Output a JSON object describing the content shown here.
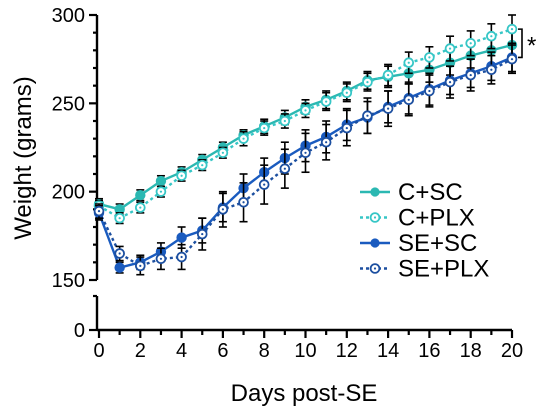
{
  "chart_data": {
    "type": "line",
    "title": "",
    "xlabel": "Days post-SE",
    "ylabel": "Weight (grams)",
    "x": [
      0,
      1,
      2,
      3,
      4,
      5,
      6,
      7,
      8,
      9,
      10,
      11,
      12,
      13,
      14,
      15,
      16,
      17,
      18,
      19,
      20
    ],
    "xlim": [
      0,
      20
    ],
    "ylim_upper": [
      150,
      300
    ],
    "ylim_lower": [
      0,
      10
    ],
    "xticks": [
      0,
      2,
      4,
      6,
      8,
      10,
      12,
      14,
      16,
      18,
      20
    ],
    "xtick_labels": [
      "0",
      "2",
      "4",
      "6",
      "8",
      "10",
      "12",
      "14",
      "16",
      "18",
      "20"
    ],
    "yticks": [
      150,
      200,
      250,
      300
    ],
    "ytick_labels": [
      "150",
      "200",
      "250",
      "300"
    ],
    "yticks_lower": [
      0
    ],
    "ytick_labels_lower": [
      "0"
    ],
    "grid": false,
    "axis_break": true,
    "legend_position": "right",
    "series": [
      {
        "name": "C+SC",
        "color": "#2bb8b2",
        "line_style": "solid",
        "marker": "filled-circle",
        "values": [
          193,
          190,
          198,
          206,
          211,
          218,
          225,
          232,
          237,
          242,
          248,
          252,
          257,
          263,
          265,
          267,
          269,
          273,
          277,
          280,
          283
        ],
        "errors": [
          3,
          3,
          3,
          3,
          3,
          3,
          3,
          3,
          4,
          4,
          4,
          5,
          5,
          5,
          6,
          6,
          7,
          7,
          7,
          8,
          8
        ]
      },
      {
        "name": "C+PLX",
        "color": "#36c6c6",
        "line_style": "dotted",
        "marker": "open-circle",
        "values": [
          192,
          185,
          191,
          200,
          209,
          215,
          222,
          230,
          236,
          240,
          246,
          251,
          256,
          262,
          266,
          273,
          276,
          281,
          284,
          288,
          292
        ],
        "errors": [
          3,
          3,
          3,
          3,
          3,
          3,
          3,
          4,
          4,
          4,
          4,
          5,
          5,
          5,
          6,
          6,
          6,
          7,
          7,
          7,
          8
        ]
      },
      {
        "name": "SE+SC",
        "color": "#1a5bbf",
        "line_style": "solid",
        "marker": "filled-circle",
        "values": [
          188,
          157,
          160,
          166,
          174,
          178,
          191,
          202,
          211,
          219,
          226,
          231,
          238,
          242,
          248,
          253,
          258,
          263,
          267,
          271,
          276
        ],
        "errors": [
          4,
          3,
          4,
          5,
          6,
          7,
          8,
          8,
          8,
          9,
          9,
          9,
          9,
          9,
          9,
          9,
          9,
          8,
          8,
          8,
          8
        ]
      },
      {
        "name": "SE+PLX",
        "color": "#1c4fa0",
        "line_style": "dotted",
        "marker": "open-circle",
        "values": [
          189,
          165,
          158,
          162,
          163,
          176,
          190,
          194,
          204,
          213,
          222,
          228,
          236,
          243,
          247,
          252,
          257,
          262,
          266,
          269,
          275
        ],
        "errors": [
          4,
          4,
          5,
          6,
          7,
          9,
          10,
          11,
          11,
          11,
          11,
          10,
          10,
          10,
          10,
          9,
          9,
          9,
          9,
          8,
          8
        ]
      }
    ],
    "annotation": {
      "text": "*"
    }
  }
}
